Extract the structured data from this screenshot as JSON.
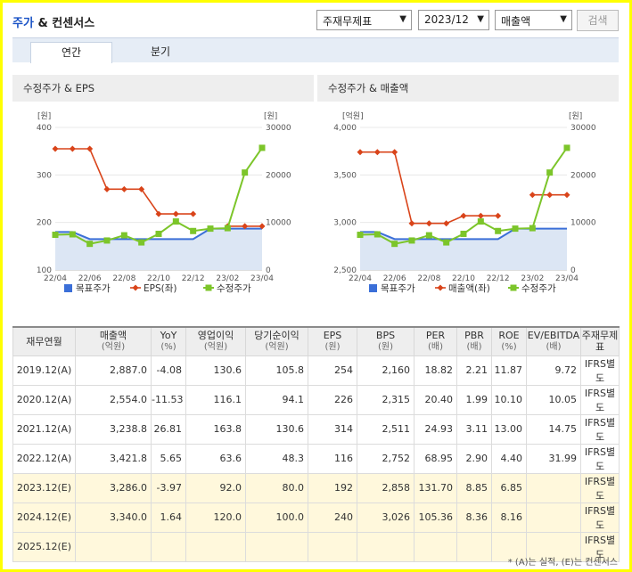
{
  "header": {
    "title_main": "주가",
    "title_rest": " & 컨센서스"
  },
  "controls": {
    "standard": "주재무제표",
    "period": "2023/12",
    "metric": "매출액",
    "search_label": "검색"
  },
  "tabs": [
    {
      "label": "연간"
    },
    {
      "label": "분기"
    }
  ],
  "chart_data": [
    {
      "type": "line",
      "title": "수정주가 & EPS",
      "left_unit": "[원]",
      "right_unit": "[원]",
      "x_labels": [
        "22/04",
        "22/06",
        "22/08",
        "22/10",
        "22/12",
        "23/02",
        "23/04"
      ],
      "left_ticks": [
        "400",
        "300",
        "200",
        "100"
      ],
      "right_ticks": [
        "30000",
        "20000",
        "10000",
        "0"
      ],
      "ylim_left": [
        100,
        400
      ],
      "ylim_right": [
        0,
        30000
      ],
      "legend": [
        "목표주가",
        "EPS(좌)",
        "수정주가"
      ],
      "series": [
        {
          "name": "목표주가",
          "axis": "right",
          "values": [
            8000,
            8000,
            6500,
            6500,
            6500,
            6500,
            6500,
            6500,
            6500,
            8700,
            8700,
            8700,
            8700
          ]
        },
        {
          "name": "EPS(좌)",
          "axis": "left",
          "values": [
            355,
            355,
            355,
            270,
            270,
            270,
            218,
            218,
            218,
            null,
            192,
            192,
            192
          ]
        },
        {
          "name": "수정주가",
          "axis": "right",
          "values": [
            7400,
            7500,
            5500,
            6200,
            7300,
            5800,
            7600,
            10200,
            8200,
            8700,
            8800,
            20500,
            25700
          ]
        }
      ],
      "x_count": 13
    },
    {
      "type": "line",
      "title": "수정주가 & 매출액",
      "left_unit": "[억원]",
      "right_unit": "[원]",
      "x_labels": [
        "22/04",
        "22/06",
        "22/08",
        "22/10",
        "22/12",
        "23/02",
        "23/04"
      ],
      "left_ticks": [
        "4,000",
        "3,500",
        "3,000",
        "2,500"
      ],
      "right_ticks": [
        "30000",
        "20000",
        "10000",
        "0"
      ],
      "ylim_left": [
        2500,
        4000
      ],
      "ylim_right": [
        0,
        30000
      ],
      "legend": [
        "목표주가",
        "매출액(좌)",
        "수정주가"
      ],
      "series": [
        {
          "name": "목표주가",
          "axis": "right",
          "values": [
            8000,
            8000,
            6500,
            6500,
            6500,
            6500,
            6500,
            6500,
            6500,
            8700,
            8700,
            8700,
            8700
          ]
        },
        {
          "name": "매출액(좌)",
          "axis": "left",
          "values": [
            3740,
            3740,
            3740,
            2990,
            2990,
            2990,
            3070,
            3070,
            3070,
            null,
            3290,
            3290,
            3290
          ]
        },
        {
          "name": "수정주가",
          "axis": "right",
          "values": [
            7400,
            7500,
            5500,
            6200,
            7300,
            5800,
            7600,
            10200,
            8200,
            8700,
            8800,
            20500,
            25700
          ]
        }
      ],
      "x_count": 13
    }
  ],
  "table": {
    "headers": [
      {
        "t": "재무연월",
        "u": ""
      },
      {
        "t": "매출액",
        "u": "(억원)"
      },
      {
        "t": "YoY",
        "u": "(%)"
      },
      {
        "t": "영업이익",
        "u": "(억원)"
      },
      {
        "t": "당기순이익",
        "u": "(억원)"
      },
      {
        "t": "EPS",
        "u": "(원)"
      },
      {
        "t": "BPS",
        "u": "(원)"
      },
      {
        "t": "PER",
        "u": "(배)"
      },
      {
        "t": "PBR",
        "u": "(배)"
      },
      {
        "t": "ROE",
        "u": "(%)"
      },
      {
        "t": "EV/EBITDA",
        "u": "(배)"
      },
      {
        "t": "주재무제표",
        "u": ""
      }
    ],
    "rows": [
      {
        "est": false,
        "cells": [
          "2019.12(A)",
          "2,887.0",
          "-4.08",
          "130.6",
          "105.8",
          "254",
          "2,160",
          "18.82",
          "2.21",
          "11.87",
          "9.72",
          "IFRS별도"
        ]
      },
      {
        "est": false,
        "cells": [
          "2020.12(A)",
          "2,554.0",
          "-11.53",
          "116.1",
          "94.1",
          "226",
          "2,315",
          "20.40",
          "1.99",
          "10.10",
          "10.05",
          "IFRS별도"
        ]
      },
      {
        "est": false,
        "cells": [
          "2021.12(A)",
          "3,238.8",
          "26.81",
          "163.8",
          "130.6",
          "314",
          "2,511",
          "24.93",
          "3.11",
          "13.00",
          "14.75",
          "IFRS별도"
        ]
      },
      {
        "est": false,
        "cells": [
          "2022.12(A)",
          "3,421.8",
          "5.65",
          "63.6",
          "48.3",
          "116",
          "2,752",
          "68.95",
          "2.90",
          "4.40",
          "31.99",
          "IFRS별도"
        ]
      },
      {
        "est": true,
        "cells": [
          "2023.12(E)",
          "3,286.0",
          "-3.97",
          "92.0",
          "80.0",
          "192",
          "2,858",
          "131.70",
          "8.85",
          "6.85",
          "",
          "IFRS별도"
        ]
      },
      {
        "est": true,
        "cells": [
          "2024.12(E)",
          "3,340.0",
          "1.64",
          "120.0",
          "100.0",
          "240",
          "3,026",
          "105.36",
          "8.36",
          "8.16",
          "",
          "IFRS별도"
        ]
      },
      {
        "est": true,
        "cells": [
          "2025.12(E)",
          "",
          "",
          "",
          "",
          "",
          "",
          "",
          "",
          "",
          "",
          "IFRS별도"
        ]
      }
    ]
  },
  "footnote": "* (A)는 실적, (E)는 컨센서스",
  "colors": {
    "target": "#3b6fd8",
    "eps": "#d9441a",
    "price": "#7cc52a",
    "area": "#dce6f4"
  }
}
